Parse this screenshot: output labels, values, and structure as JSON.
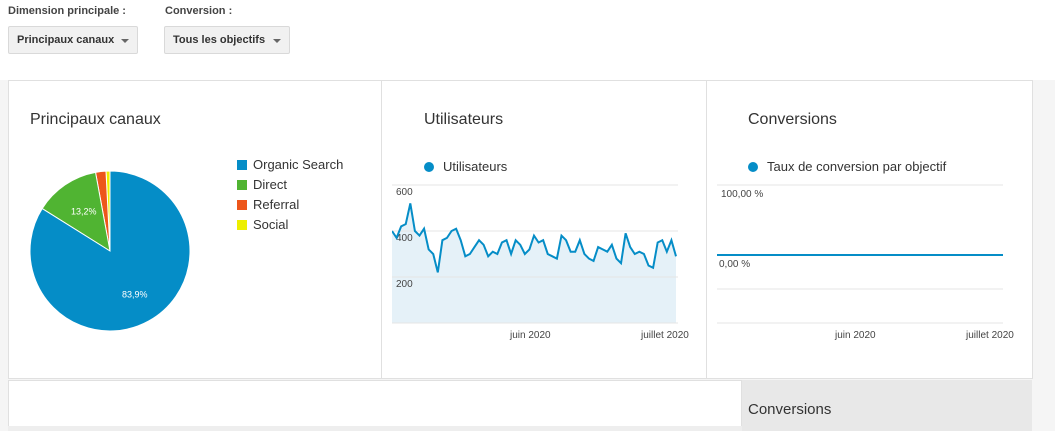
{
  "controls": {
    "dimension_label": "Dimension principale :",
    "dimension_value": "Principaux canaux",
    "conversion_label": "Conversion :",
    "conversion_value": "Tous les objectifs"
  },
  "channels_panel": {
    "title": "Principaux canaux",
    "legend": [
      {
        "label": "Organic Search",
        "color": "#058dc7"
      },
      {
        "label": "Direct",
        "color": "#50b432"
      },
      {
        "label": "Referral",
        "color": "#ed561b"
      },
      {
        "label": "Social",
        "color": "#edef00"
      }
    ],
    "pie_labels": [
      "83,9%",
      "13,2%"
    ]
  },
  "users_panel": {
    "title": "Utilisateurs",
    "series_label": "Utilisateurs",
    "y_ticks": [
      "600",
      "400",
      "200"
    ],
    "x_ticks": [
      "juin 2020",
      "juillet 2020"
    ]
  },
  "conversions_panel": {
    "title": "Conversions",
    "series_label": "Taux de conversion par objectif",
    "y_ticks": [
      "100,00 %",
      "0,00 %"
    ],
    "x_ticks": [
      "juin 2020",
      "juillet 2020"
    ]
  },
  "bottom": {
    "conversions_header": "Conversions"
  },
  "chart_data": [
    {
      "type": "pie",
      "title": "Principaux canaux",
      "categories": [
        "Organic Search",
        "Direct",
        "Referral",
        "Social"
      ],
      "values": [
        83.9,
        13.2,
        2.1,
        0.8
      ],
      "colors": [
        "#058dc7",
        "#50b432",
        "#ed561b",
        "#edef00"
      ]
    },
    {
      "type": "area",
      "title": "Utilisateurs",
      "series": [
        {
          "name": "Utilisateurs",
          "values": [
            400,
            370,
            420,
            430,
            520,
            400,
            380,
            410,
            320,
            300,
            220,
            360,
            370,
            400,
            410,
            360,
            290,
            300,
            330,
            360,
            340,
            290,
            310,
            300,
            350,
            360,
            300,
            360,
            340,
            300,
            320,
            380,
            350,
            360,
            300,
            290,
            280,
            380,
            360,
            310,
            310,
            360,
            300,
            280,
            270,
            330,
            320,
            310,
            340,
            280,
            260,
            390,
            330,
            300,
            310,
            300,
            250,
            240,
            350,
            360,
            310,
            360,
            290
          ]
        }
      ],
      "x_ticks": [
        "juin 2020",
        "juillet 2020"
      ],
      "y_ticks": [
        200,
        400,
        600
      ]
    },
    {
      "type": "line",
      "title": "Conversions",
      "series": [
        {
          "name": "Taux de conversion par objectif",
          "values": [
            0,
            0
          ]
        }
      ],
      "y_ticks": [
        "0,00 %",
        "100,00 %"
      ],
      "x_ticks": [
        "juin 2020",
        "juillet 2020"
      ]
    }
  ]
}
